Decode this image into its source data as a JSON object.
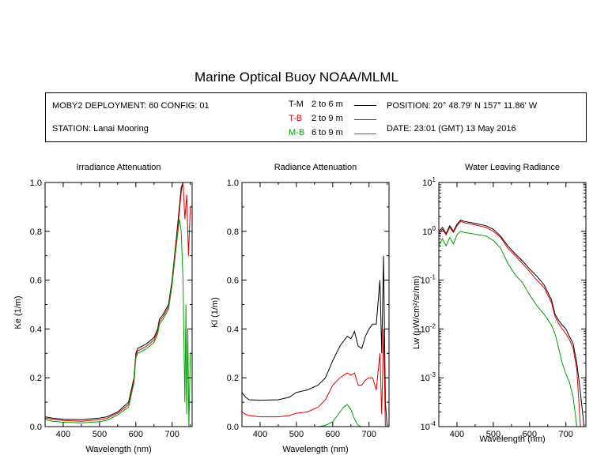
{
  "title": "Marine Optical Buoy NOAA/MLML",
  "info": {
    "deployment": "MOBY2 DEPLOYMENT: 60 CONFIG: 01",
    "station": "STATION: Lanai Mooring",
    "position": "POSITION: 20° 48.79' N   157° 11.86' W",
    "date": "DATE: 23:01 (GMT) 13 May 2016",
    "depth_pairs": [
      {
        "name": "T-M",
        "range": "2 to 6  m",
        "color": "#000000"
      },
      {
        "name": "T-B",
        "range": "2 to 9  m",
        "color": "#e00000"
      },
      {
        "name": "M-B",
        "range": "6 to 9  m",
        "color": "#00a000"
      }
    ]
  },
  "chart_data": [
    {
      "type": "line",
      "title": "Irradiance Attenuation",
      "xlabel": "Wavelength (nm)",
      "ylabel": "Ke  (1/m)",
      "xlim": [
        350,
        755
      ],
      "ylim": [
        0,
        1.0
      ],
      "yscale": "linear",
      "xticks": [
        "400",
        "500",
        "600",
        "700"
      ],
      "yticks": [
        "0.0",
        "0.2",
        "0.4",
        "0.6",
        "0.8",
        "1.0"
      ],
      "series": [
        {
          "name": "T-M",
          "color": "#000000",
          "x": [
            350,
            370,
            400,
            450,
            500,
            520,
            550,
            580,
            595,
            600,
            605,
            630,
            650,
            660,
            665,
            675,
            690,
            700,
            710,
            720,
            725,
            730,
            735
          ],
          "y": [
            0.04,
            0.035,
            0.03,
            0.028,
            0.035,
            0.04,
            0.06,
            0.1,
            0.2,
            0.3,
            0.32,
            0.34,
            0.365,
            0.4,
            0.44,
            0.46,
            0.5,
            0.6,
            0.75,
            0.9,
            0.98,
            1.0,
            1.0
          ]
        },
        {
          "name": "T-B",
          "color": "#e00000",
          "x": [
            350,
            370,
            400,
            450,
            500,
            520,
            550,
            580,
            595,
            600,
            605,
            630,
            650,
            660,
            665,
            675,
            690,
            700,
            710,
            720,
            725,
            730,
            735,
            740,
            745,
            750
          ],
          "y": [
            0.035,
            0.03,
            0.025,
            0.022,
            0.028,
            0.034,
            0.055,
            0.09,
            0.19,
            0.29,
            0.31,
            0.33,
            0.355,
            0.39,
            0.43,
            0.45,
            0.49,
            0.59,
            0.74,
            0.88,
            0.96,
            1.0,
            0.85,
            0.95,
            0.7,
            0.9
          ]
        },
        {
          "name": "M-B",
          "color": "#00a000",
          "x": [
            350,
            370,
            400,
            450,
            500,
            520,
            550,
            580,
            595,
            600,
            605,
            630,
            650,
            660,
            665,
            675,
            690,
            700,
            710,
            720,
            725,
            730,
            735,
            738,
            740,
            743,
            746,
            750
          ],
          "y": [
            0.028,
            0.022,
            0.018,
            0.015,
            0.02,
            0.026,
            0.048,
            0.08,
            0.18,
            0.28,
            0.3,
            0.32,
            0.345,
            0.38,
            0.42,
            0.44,
            0.48,
            0.58,
            0.72,
            0.85,
            0.8,
            0.6,
            0.1,
            0.5,
            0.05,
            0.4,
            0.0,
            0.3
          ]
        }
      ]
    },
    {
      "type": "line",
      "title": "Radiance Attenuation",
      "xlabel": "Wavelength (nm)",
      "ylabel": "Kl  (1/m)",
      "xlim": [
        350,
        755
      ],
      "ylim": [
        0,
        1.0
      ],
      "yscale": "linear",
      "xticks": [
        "400",
        "500",
        "600",
        "700"
      ],
      "yticks": [
        "0.0",
        "0.2",
        "0.4",
        "0.6",
        "0.8",
        "1.0"
      ],
      "series": [
        {
          "name": "T-M",
          "color": "#000000",
          "x": [
            350,
            360,
            370,
            400,
            450,
            480,
            500,
            530,
            560,
            580,
            600,
            620,
            640,
            650,
            660,
            670,
            680,
            690,
            700,
            710,
            720,
            730,
            735,
            740,
            745,
            750
          ],
          "y": [
            0.14,
            0.12,
            0.11,
            0.108,
            0.11,
            0.12,
            0.14,
            0.15,
            0.17,
            0.2,
            0.27,
            0.33,
            0.37,
            0.36,
            0.39,
            0.33,
            0.32,
            0.37,
            0.4,
            0.42,
            0.42,
            0.6,
            0.3,
            0.7,
            0.1,
            0.0
          ]
        },
        {
          "name": "T-B",
          "color": "#e00000",
          "x": [
            350,
            360,
            370,
            400,
            450,
            480,
            500,
            530,
            560,
            580,
            600,
            620,
            640,
            650,
            660,
            670,
            680,
            690,
            700,
            710,
            720,
            730,
            735,
            740,
            745,
            750
          ],
          "y": [
            0.06,
            0.05,
            0.045,
            0.04,
            0.04,
            0.045,
            0.055,
            0.06,
            0.08,
            0.11,
            0.17,
            0.2,
            0.22,
            0.21,
            0.22,
            0.17,
            0.17,
            0.19,
            0.2,
            0.2,
            0.15,
            0.3,
            0.05,
            0.4,
            0.0,
            0.0
          ]
        },
        {
          "name": "M-B",
          "color": "#00a000",
          "x": [
            350,
            500,
            560,
            580,
            600,
            620,
            630,
            640,
            650,
            660,
            670,
            680
          ],
          "y": [
            0.0,
            0.0,
            0.0,
            0.005,
            0.02,
            0.06,
            0.08,
            0.09,
            0.07,
            0.03,
            0.005,
            0.0
          ]
        }
      ]
    },
    {
      "type": "line",
      "title": "Water Leaving Radiance",
      "xlabel": "Wavelength (nm)",
      "ylabel": "Lw  (μW/cm²/sr/nm)",
      "xlim": [
        350,
        755
      ],
      "ylim": [
        0.0001,
        10
      ],
      "yscale": "log",
      "xticks": [
        "400",
        "500",
        "600",
        "700"
      ],
      "yticks": [
        "10-4",
        "10-3",
        "10-2",
        "10-1",
        "100",
        "101"
      ],
      "series": [
        {
          "name": "T-M",
          "color": "#000000",
          "x": [
            350,
            360,
            370,
            380,
            390,
            400,
            410,
            420,
            440,
            460,
            480,
            500,
            520,
            540,
            560,
            580,
            600,
            620,
            640,
            660,
            670,
            680,
            690,
            700,
            710,
            720,
            730,
            740,
            750
          ],
          "y": [
            1.0,
            1.2,
            0.9,
            1.3,
            1.0,
            1.4,
            1.7,
            1.6,
            1.5,
            1.4,
            1.3,
            1.1,
            0.8,
            0.5,
            0.35,
            0.25,
            0.17,
            0.12,
            0.08,
            0.04,
            0.02,
            0.015,
            0.012,
            0.01,
            0.007,
            0.005,
            0.002,
            0.0005,
            0.0001
          ]
        },
        {
          "name": "T-B",
          "color": "#e00000",
          "x": [
            350,
            360,
            370,
            380,
            390,
            400,
            410,
            420,
            440,
            460,
            480,
            500,
            520,
            540,
            560,
            580,
            600,
            620,
            640,
            660,
            670,
            680,
            690,
            700,
            710,
            720,
            730,
            740
          ],
          "y": [
            0.9,
            1.1,
            0.85,
            1.2,
            0.95,
            1.3,
            1.6,
            1.5,
            1.4,
            1.3,
            1.2,
            1.0,
            0.75,
            0.45,
            0.32,
            0.22,
            0.15,
            0.1,
            0.07,
            0.035,
            0.018,
            0.013,
            0.01,
            0.008,
            0.006,
            0.004,
            0.0015,
            0.0001
          ]
        },
        {
          "name": "M-B",
          "color": "#00a000",
          "x": [
            350,
            360,
            370,
            380,
            390,
            400,
            410,
            420,
            440,
            460,
            480,
            500,
            520,
            540,
            560,
            580,
            600,
            620,
            640,
            660,
            670,
            680,
            690,
            700,
            710,
            720,
            730
          ],
          "y": [
            0.5,
            0.7,
            0.5,
            0.75,
            0.55,
            0.85,
            1.0,
            0.95,
            0.9,
            0.85,
            0.8,
            0.65,
            0.45,
            0.22,
            0.13,
            0.09,
            0.05,
            0.03,
            0.02,
            0.012,
            0.008,
            0.004,
            0.002,
            0.0012,
            0.0008,
            0.0004,
            0.0001
          ]
        }
      ]
    }
  ]
}
